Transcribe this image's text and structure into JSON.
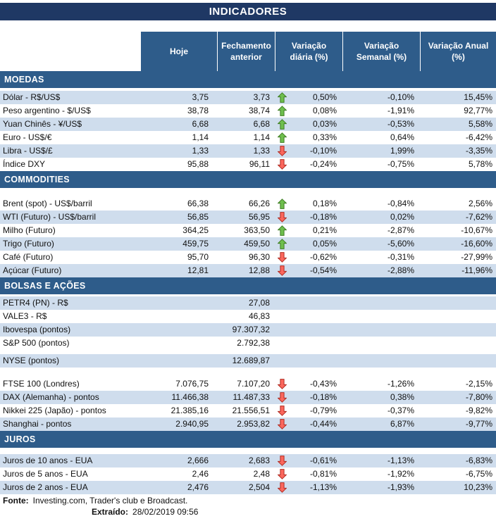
{
  "title": "INDICADORES",
  "columns": [
    "Hoje",
    "Fechamento anterior",
    "Variação diária (%)",
    "Variação Semanal (%)",
    "Variação Anual (%)"
  ],
  "sections": [
    {
      "id": "moedas",
      "name": "MOEDAS",
      "rows": [
        {
          "spacer": 4
        },
        {
          "label": "Dólar - R$/US$",
          "hoje": "3,75",
          "fech": "3,73",
          "trend": "up",
          "dia": "0,50%",
          "sem": "-0,10%",
          "anu": "15,45%",
          "shaded": true
        },
        {
          "label": "Peso argentino - $/US$",
          "hoje": "38,78",
          "fech": "38,74",
          "trend": "up",
          "dia": "0,08%",
          "sem": "-1,91%",
          "anu": "92,77%",
          "shaded": false
        },
        {
          "label": "Yuan Chinês - ¥/US$",
          "hoje": "6,68",
          "fech": "6,68",
          "trend": "up",
          "dia": "0,03%",
          "sem": "-0,53%",
          "anu": "5,58%",
          "shaded": true
        },
        {
          "label": "Euro - US$/€",
          "hoje": "1,14",
          "fech": "1,14",
          "trend": "up",
          "dia": "0,33%",
          "sem": "0,64%",
          "anu": "-6,42%",
          "shaded": false
        },
        {
          "label": "Libra - US$/£",
          "hoje": "1,33",
          "fech": "1,33",
          "trend": "down",
          "dia": "-0,10%",
          "sem": "1,99%",
          "anu": "-3,35%",
          "shaded": true
        },
        {
          "label": "Índice DXY",
          "hoje": "95,88",
          "fech": "96,11",
          "trend": "down",
          "dia": "-0,24%",
          "sem": "-0,75%",
          "anu": "5,78%",
          "shaded": false
        }
      ]
    },
    {
      "id": "commodities",
      "name": "COMMODITIES",
      "rows": [
        {
          "spacer": 13
        },
        {
          "label": "Brent (spot) - US$/barril",
          "hoje": "66,38",
          "fech": "66,26",
          "trend": "up",
          "dia": "0,18%",
          "sem": "-0,84%",
          "anu": "2,56%",
          "shaded": false
        },
        {
          "label": "WTI (Futuro) - US$/barril",
          "hoje": "56,85",
          "fech": "56,95",
          "trend": "down",
          "dia": "-0,18%",
          "sem": "0,02%",
          "anu": "-7,62%",
          "shaded": true
        },
        {
          "label": "Milho (Futuro)",
          "hoje": "364,25",
          "fech": "363,50",
          "trend": "up",
          "dia": "0,21%",
          "sem": "-2,87%",
          "anu": "-10,67%",
          "shaded": false
        },
        {
          "label": "Trigo (Futuro)",
          "hoje": "459,75",
          "fech": "459,50",
          "trend": "up",
          "dia": "0,05%",
          "sem": "-5,60%",
          "anu": "-16,60%",
          "shaded": true
        },
        {
          "label": "Café (Futuro)",
          "hoje": "95,70",
          "fech": "96,30",
          "trend": "down",
          "dia": "-0,62%",
          "sem": "-0,31%",
          "anu": "-27,99%",
          "shaded": false
        },
        {
          "label": "Açúcar (Futuro)",
          "hoje": "12,81",
          "fech": "12,88",
          "trend": "down",
          "dia": "-0,54%",
          "sem": "-2,88%",
          "anu": "-11,96%",
          "shaded": true
        }
      ]
    },
    {
      "id": "bolsas-e-acoes",
      "name": "BOLSAS E AÇÕES",
      "rows": [
        {
          "spacer": 3
        },
        {
          "label": "PETR4 (PN) - R$",
          "hoje": "",
          "fech": "27,08",
          "trend": "",
          "dia": "",
          "sem": "",
          "anu": "",
          "shaded": true
        },
        {
          "label": "VALE3 - R$",
          "hoje": "",
          "fech": "46,83",
          "trend": "",
          "dia": "",
          "sem": "",
          "anu": "",
          "shaded": false
        },
        {
          "label": "Ibovespa (pontos)",
          "hoje": "",
          "fech": "97.307,32",
          "trend": "",
          "dia": "",
          "sem": "",
          "anu": "",
          "shaded": true
        },
        {
          "label": "S&P 500 (pontos)",
          "hoje": "",
          "fech": "2.792,38",
          "trend": "",
          "dia": "",
          "sem": "",
          "anu": "",
          "shaded": false
        },
        {
          "spacer": 6
        },
        {
          "label": "NYSE (pontos)",
          "hoje": "",
          "fech": "12.689,87",
          "trend": "",
          "dia": "",
          "sem": "",
          "anu": "",
          "shaded": true
        },
        {
          "spacer": 14
        },
        {
          "label": "FTSE 100 (Londres)",
          "hoje": "7.076,75",
          "fech": "7.107,20",
          "trend": "down",
          "dia": "-0,43%",
          "sem": "-1,26%",
          "anu": "-2,15%",
          "shaded": false
        },
        {
          "label": "DAX (Alemanha) - pontos",
          "hoje": "11.466,38",
          "fech": "11.487,33",
          "trend": "down",
          "dia": "-0,18%",
          "sem": "0,38%",
          "anu": "-7,80%",
          "shaded": true
        },
        {
          "label": "Nikkei 225 (Japão) - pontos",
          "hoje": "21.385,16",
          "fech": "21.556,51",
          "trend": "down",
          "dia": "-0,79%",
          "sem": "-0,37%",
          "anu": "-9,82%",
          "shaded": false
        },
        {
          "label": "Shanghai - pontos",
          "hoje": "2.940,95",
          "fech": "2.953,82",
          "trend": "down",
          "dia": "-0,44%",
          "sem": "6,87%",
          "anu": "-9,77%",
          "shaded": true
        }
      ]
    },
    {
      "id": "juros",
      "name": "JUROS",
      "rows": [
        {
          "spacer": 9
        },
        {
          "label": "Juros de 10 anos - EUA",
          "hoje": "2,666",
          "fech": "2,683",
          "trend": "down",
          "dia": "-0,61%",
          "sem": "-1,13%",
          "anu": "-6,83%",
          "shaded": true
        },
        {
          "label": "Juros de 5 anos - EUA",
          "hoje": "2,46",
          "fech": "2,48",
          "trend": "down",
          "dia": "-0,81%",
          "sem": "-1,92%",
          "anu": "-6,75%",
          "shaded": false
        },
        {
          "label": "Juros de 2 anos - EUA",
          "hoje": "2,476",
          "fech": "2,504",
          "trend": "down",
          "dia": "-1,13%",
          "sem": "-1,93%",
          "anu": "10,23%",
          "shaded": true
        }
      ]
    }
  ],
  "footer": {
    "fonte_label": "Fonte:",
    "fonte_text": "Investing.com, Trader's club e Broadcast.",
    "extraido_label": "Extraído:",
    "extraido_value": "28/02/2019 09:56"
  },
  "icons": {
    "up": "up-arrow-icon",
    "down": "down-arrow-icon"
  },
  "colors": {
    "title_bg": "#1f3864",
    "header_bg": "#2e5c8a",
    "section_bg": "#2e5c8a",
    "row_shade": "#cfdded",
    "up_fill": "#6fbf4e",
    "up_stroke": "#3e7d23",
    "down_fill": "#fb675d",
    "down_stroke": "#b02c22"
  }
}
